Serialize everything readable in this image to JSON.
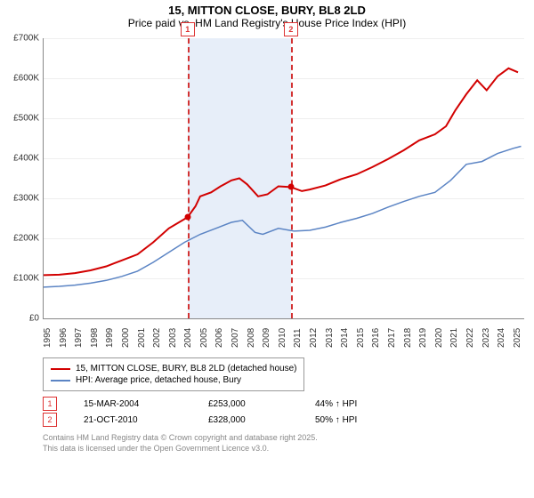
{
  "title_line1": "15, MITTON CLOSE, BURY, BL8 2LD",
  "title_line2": "Price paid vs. HM Land Registry's House Price Index (HPI)",
  "chart": {
    "type": "line",
    "xlim": [
      1995,
      2025.7
    ],
    "ylim": [
      0,
      700000
    ],
    "ytick_step": 100000,
    "ylabels": [
      "£0",
      "£100K",
      "£200K",
      "£300K",
      "£400K",
      "£500K",
      "£600K",
      "£700K"
    ],
    "xticks": [
      1995,
      1996,
      1997,
      1998,
      1999,
      2000,
      2001,
      2002,
      2003,
      2004,
      2005,
      2006,
      2007,
      2008,
      2009,
      2010,
      2011,
      2012,
      2013,
      2014,
      2015,
      2016,
      2017,
      2018,
      2019,
      2020,
      2021,
      2022,
      2023,
      2024,
      2025
    ],
    "background_color": "#ffffff",
    "grid_color": "#eeeeee",
    "band_color": "#e7eef9",
    "band_xrange": [
      2004.2,
      2010.8
    ],
    "dash_color": "#d33333",
    "series": [
      {
        "name": "subject",
        "color": "#d20000",
        "width": 2,
        "points": [
          [
            1995,
            108000
          ],
          [
            1996,
            109000
          ],
          [
            1997,
            113000
          ],
          [
            1998,
            120000
          ],
          [
            1999,
            130000
          ],
          [
            2000,
            145000
          ],
          [
            2001,
            160000
          ],
          [
            2002,
            190000
          ],
          [
            2003,
            225000
          ],
          [
            2004.2,
            253000
          ],
          [
            2004.7,
            280000
          ],
          [
            2005,
            305000
          ],
          [
            2005.7,
            315000
          ],
          [
            2006.3,
            330000
          ],
          [
            2007,
            345000
          ],
          [
            2007.5,
            350000
          ],
          [
            2008,
            335000
          ],
          [
            2008.7,
            305000
          ],
          [
            2009.3,
            310000
          ],
          [
            2010,
            330000
          ],
          [
            2010.8,
            328000
          ],
          [
            2011.5,
            318000
          ],
          [
            2012,
            322000
          ],
          [
            2013,
            332000
          ],
          [
            2014,
            348000
          ],
          [
            2015,
            360000
          ],
          [
            2016,
            378000
          ],
          [
            2017,
            398000
          ],
          [
            2018,
            420000
          ],
          [
            2019,
            445000
          ],
          [
            2020,
            460000
          ],
          [
            2020.7,
            480000
          ],
          [
            2021.3,
            520000
          ],
          [
            2022,
            560000
          ],
          [
            2022.7,
            595000
          ],
          [
            2023.3,
            570000
          ],
          [
            2024,
            605000
          ],
          [
            2024.7,
            625000
          ],
          [
            2025.3,
            615000
          ]
        ]
      },
      {
        "name": "hpi",
        "color": "#5b84c4",
        "width": 1.5,
        "points": [
          [
            1995,
            78000
          ],
          [
            1996,
            80000
          ],
          [
            1997,
            83000
          ],
          [
            1998,
            88000
          ],
          [
            1999,
            95000
          ],
          [
            2000,
            105000
          ],
          [
            2001,
            118000
          ],
          [
            2002,
            140000
          ],
          [
            2003,
            165000
          ],
          [
            2004,
            190000
          ],
          [
            2005,
            210000
          ],
          [
            2006,
            225000
          ],
          [
            2007,
            240000
          ],
          [
            2007.7,
            245000
          ],
          [
            2008.5,
            215000
          ],
          [
            2009,
            210000
          ],
          [
            2010,
            225000
          ],
          [
            2011,
            218000
          ],
          [
            2012,
            220000
          ],
          [
            2013,
            228000
          ],
          [
            2014,
            240000
          ],
          [
            2015,
            250000
          ],
          [
            2016,
            262000
          ],
          [
            2017,
            278000
          ],
          [
            2018,
            292000
          ],
          [
            2019,
            305000
          ],
          [
            2020,
            315000
          ],
          [
            2021,
            345000
          ],
          [
            2022,
            385000
          ],
          [
            2023,
            392000
          ],
          [
            2024,
            412000
          ],
          [
            2025,
            425000
          ],
          [
            2025.5,
            430000
          ]
        ]
      }
    ],
    "sale_markers": [
      {
        "n": "1",
        "x": 2004.2,
        "y": 253000,
        "color": "#d20000"
      },
      {
        "n": "2",
        "x": 2010.8,
        "y": 328000,
        "color": "#d20000"
      }
    ]
  },
  "legend": {
    "line1": {
      "label": "15, MITTON CLOSE, BURY, BL8 2LD (detached house)",
      "color": "#d20000"
    },
    "line2": {
      "label": "HPI: Average price, detached house, Bury",
      "color": "#5b84c4"
    }
  },
  "sales": [
    {
      "n": "1",
      "date": "15-MAR-2004",
      "price": "£253,000",
      "vs": "44% ↑ HPI"
    },
    {
      "n": "2",
      "date": "21-OCT-2010",
      "price": "£328,000",
      "vs": "50% ↑ HPI"
    }
  ],
  "footer1": "Contains HM Land Registry data © Crown copyright and database right 2025.",
  "footer2": "This data is licensed under the Open Government Licence v3.0."
}
